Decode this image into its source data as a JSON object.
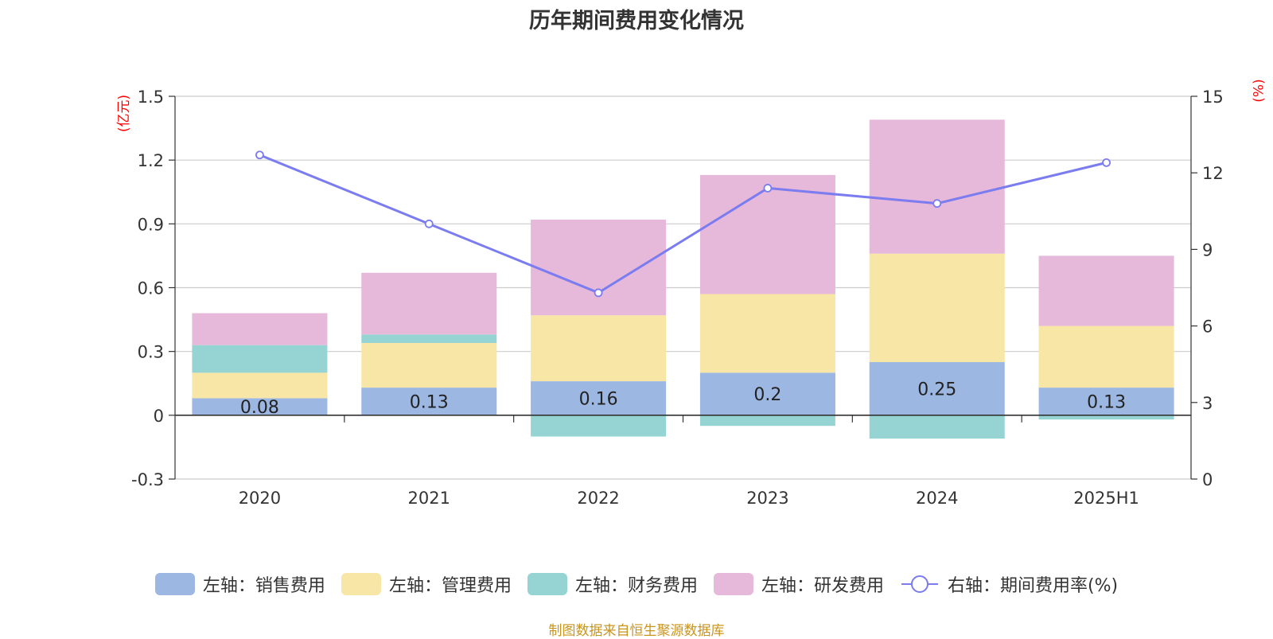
{
  "chart_data": {
    "type": "bar",
    "title": "历年期间费用变化情况",
    "left_unit": "(亿元)",
    "right_unit": "(%)",
    "categories": [
      "2020",
      "2021",
      "2022",
      "2023",
      "2024",
      "2025H1"
    ],
    "left_axis": {
      "min": -0.3,
      "max": 1.5,
      "ticks": [
        -0.3,
        0,
        0.3,
        0.6,
        0.9,
        1.2,
        1.5
      ],
      "tick_labels": [
        "-0.3",
        "0",
        "0.3",
        "0.6",
        "0.9",
        "1.2",
        "1.5"
      ]
    },
    "right_axis": {
      "min": 0,
      "max": 15,
      "ticks": [
        0,
        3,
        6,
        9,
        12,
        15
      ],
      "tick_labels": [
        "0",
        "3",
        "6",
        "9",
        "12",
        "15"
      ]
    },
    "series": [
      {
        "name": "左轴：销售费用",
        "color": "#9cb7e2",
        "values": [
          0.08,
          0.13,
          0.16,
          0.2,
          0.25,
          0.13
        ],
        "labels": [
          "0.08",
          "0.13",
          "0.16",
          "0.2",
          "0.25",
          "0.13"
        ]
      },
      {
        "name": "左轴：管理费用",
        "color": "#f8e6a6",
        "values": [
          0.12,
          0.21,
          0.31,
          0.37,
          0.51,
          0.29
        ]
      },
      {
        "name": "左轴：财务费用",
        "color": "#96d4d4",
        "values": [
          0.13,
          0.04,
          -0.1,
          -0.05,
          -0.11,
          -0.02
        ]
      },
      {
        "name": "左轴：研发费用",
        "color": "#e6b8d9",
        "values": [
          0.15,
          0.29,
          0.45,
          0.56,
          0.63,
          0.33
        ]
      }
    ],
    "line_series": {
      "name": "右轴：期间费用率(%)",
      "color": "#7a7cf0",
      "values": [
        12.7,
        10.0,
        7.3,
        11.4,
        10.8,
        12.4
      ]
    },
    "grid": true
  },
  "source": "制图数据来自恒生聚源数据库"
}
